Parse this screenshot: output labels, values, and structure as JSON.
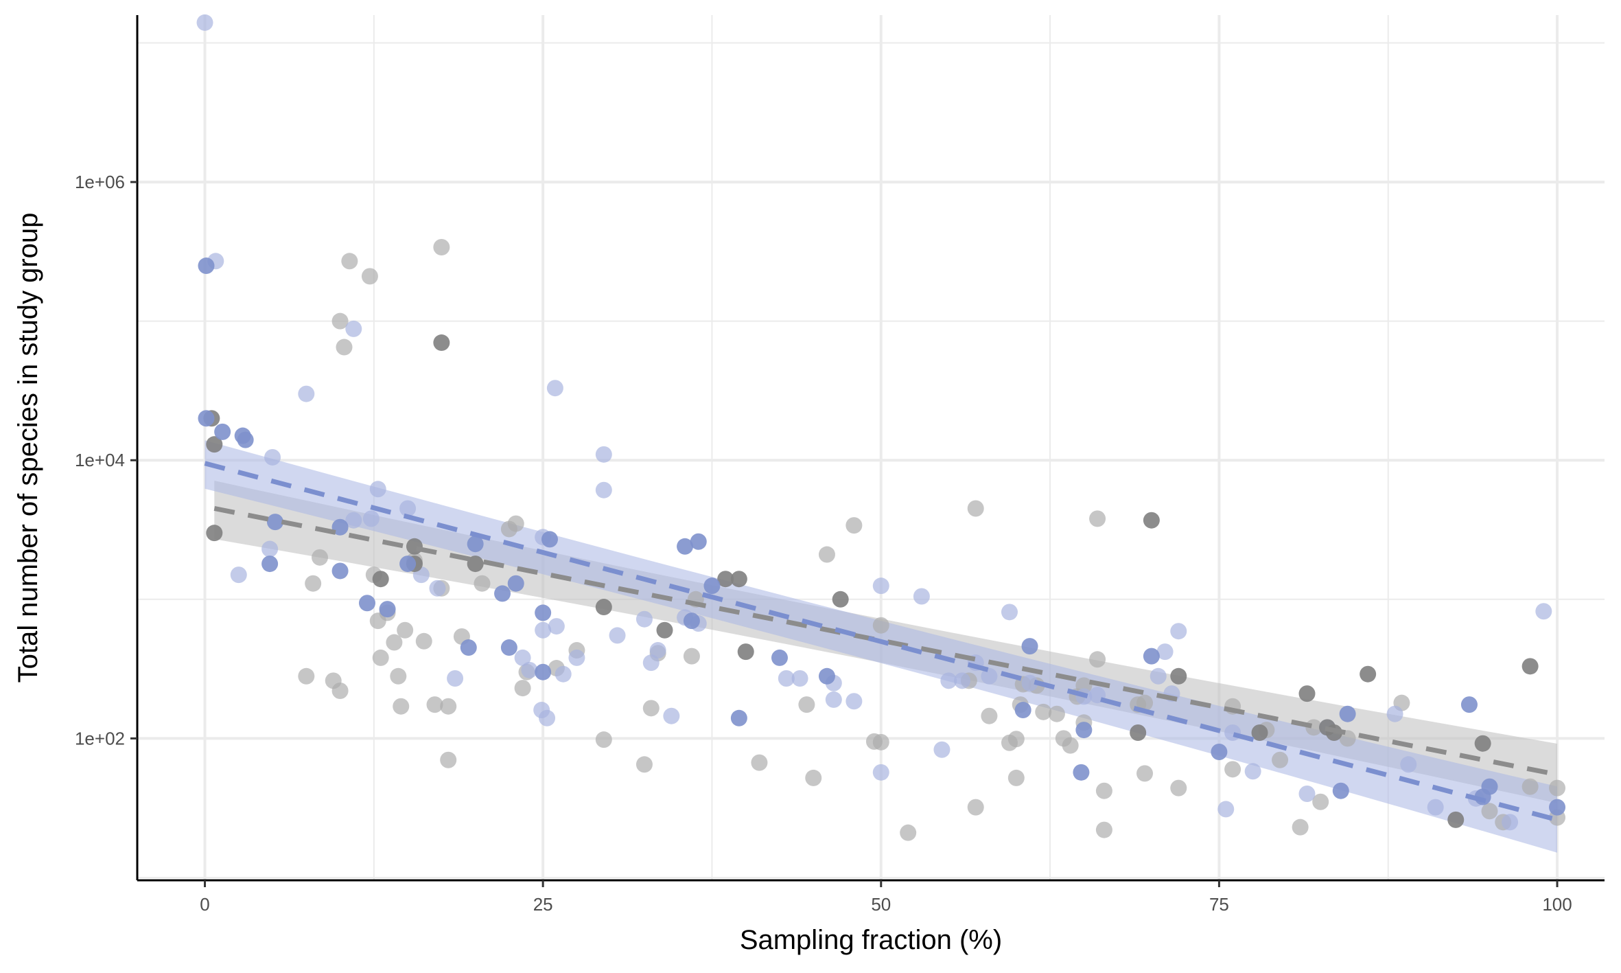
{
  "chart_data": {
    "type": "scatter",
    "title": "",
    "xlabel": "Sampling fraction (%)",
    "ylabel": "Total number of species in study group",
    "xlim": [
      -5,
      103.5
    ],
    "ylim_log10": [
      0.98,
      7.2
    ],
    "y_scale": "log10",
    "grid": true,
    "legend": "none",
    "x_ticks": [
      0,
      25,
      50,
      75,
      100
    ],
    "x_tick_labels": [
      "0",
      "25",
      "50",
      "75",
      "100"
    ],
    "y_ticks": [
      100,
      10000,
      1000000
    ],
    "y_tick_labels": [
      "1e+02",
      "1e+04",
      "1e+06"
    ],
    "colors": {
      "grey_light": "#ababab",
      "grey_dark": "#7f7f7f",
      "blue_light": "#a7b3de",
      "blue_dark": "#7e91cc",
      "grey_line": "#8c8c8c",
      "blue_line": "#7b8fcf",
      "grey_band": "#bdbdbd",
      "blue_band": "#a9b6e3",
      "grid": "#ebebeb"
    },
    "series": [
      {
        "color_key": "grey",
        "points_light": [
          [
            10,
            100000
          ],
          [
            10.3,
            65000
          ],
          [
            10.7,
            270000
          ],
          [
            12.2,
            210000
          ],
          [
            17.5,
            340000
          ],
          [
            9.5,
            260
          ],
          [
            7.5,
            280
          ],
          [
            10,
            220
          ],
          [
            8,
            1300
          ],
          [
            8.5,
            2000
          ],
          [
            12.5,
            1500
          ],
          [
            12.8,
            700
          ],
          [
            13,
            380
          ],
          [
            13.5,
            800
          ],
          [
            14,
            490
          ],
          [
            14.3,
            280
          ],
          [
            14.5,
            170
          ],
          [
            14.8,
            600
          ],
          [
            15.5,
            1900
          ],
          [
            16.2,
            500
          ],
          [
            17,
            175
          ],
          [
            17.5,
            1200
          ],
          [
            18,
            170
          ],
          [
            18,
            70
          ],
          [
            19,
            540
          ],
          [
            20.5,
            1300
          ],
          [
            22.5,
            3200
          ],
          [
            23,
            3500
          ],
          [
            23.5,
            230
          ],
          [
            23.8,
            300
          ],
          [
            26,
            320
          ],
          [
            27.5,
            430
          ],
          [
            29.5,
            98
          ],
          [
            32.5,
            65
          ],
          [
            33,
            165
          ],
          [
            33.5,
            410
          ],
          [
            36,
            390
          ],
          [
            36.3,
            1000
          ],
          [
            41,
            67
          ],
          [
            44.5,
            175
          ],
          [
            45,
            52
          ],
          [
            46,
            2100
          ],
          [
            48,
            3400
          ],
          [
            49.5,
            95
          ],
          [
            50,
            94
          ],
          [
            50,
            650
          ],
          [
            52,
            21
          ],
          [
            56.5,
            260
          ],
          [
            57,
            4500
          ],
          [
            57,
            32
          ],
          [
            58,
            145
          ],
          [
            59.5,
            93
          ],
          [
            60,
            52
          ],
          [
            60,
            99
          ],
          [
            60.3,
            175
          ],
          [
            60.5,
            245
          ],
          [
            61.5,
            240
          ],
          [
            62,
            155
          ],
          [
            63,
            150
          ],
          [
            63.5,
            100
          ],
          [
            64,
            89
          ],
          [
            64.5,
            200
          ],
          [
            65,
            240
          ],
          [
            65,
            130
          ],
          [
            66,
            3800
          ],
          [
            66,
            370
          ],
          [
            66.5,
            42
          ],
          [
            66.5,
            22
          ],
          [
            69,
            175
          ],
          [
            69.5,
            180
          ],
          [
            69.5,
            56
          ],
          [
            72,
            44
          ],
          [
            76,
            170
          ],
          [
            76,
            60
          ],
          [
            78.5,
            115
          ],
          [
            79.5,
            70
          ],
          [
            82,
            120
          ],
          [
            82.5,
            35
          ],
          [
            81,
            23
          ],
          [
            84.5,
            100
          ],
          [
            88.5,
            180
          ],
          [
            95,
            30
          ],
          [
            96,
            25
          ],
          [
            98,
            45
          ],
          [
            100,
            44
          ],
          [
            100,
            27
          ]
        ],
        "points_dark": [
          [
            0.5,
            20000
          ],
          [
            0.7,
            13000
          ],
          [
            0.7,
            3000
          ],
          [
            13,
            1400
          ],
          [
            15.5,
            2400
          ],
          [
            15.5,
            1800
          ],
          [
            17.5,
            70000
          ],
          [
            20,
            1800
          ],
          [
            29.5,
            880
          ],
          [
            34,
            600
          ],
          [
            38.5,
            1400
          ],
          [
            39.5,
            1400
          ],
          [
            40,
            420
          ],
          [
            47,
            1000
          ],
          [
            69,
            110
          ],
          [
            70,
            3700
          ],
          [
            72,
            280
          ],
          [
            78,
            110
          ],
          [
            81.5,
            210
          ],
          [
            83,
            120
          ],
          [
            83.5,
            110
          ],
          [
            86,
            290
          ],
          [
            92.5,
            26
          ],
          [
            94.5,
            92
          ],
          [
            98,
            330
          ]
        ],
        "fit": {
          "x": [
            0.7,
            100
          ],
          "y": [
            4500,
            55
          ],
          "ci_low": [
            2900,
            38
          ],
          "ci_high": [
            6700,
            82
          ]
        }
      },
      {
        "color_key": "blue",
        "points_light": [
          [
            0,
            14000000
          ],
          [
            0.8,
            270000
          ],
          [
            7.5,
            30000
          ],
          [
            11,
            88000
          ],
          [
            25.9,
            33000
          ],
          [
            29.5,
            11000
          ],
          [
            29.5,
            6100
          ],
          [
            5,
            10500
          ],
          [
            12.8,
            6200
          ],
          [
            4.8,
            2300
          ],
          [
            2.5,
            1500
          ],
          [
            11,
            3700
          ],
          [
            12.3,
            3800
          ],
          [
            15,
            4500
          ],
          [
            16,
            1500
          ],
          [
            17.2,
            1200
          ],
          [
            18.5,
            270
          ],
          [
            23.5,
            380
          ],
          [
            24,
            310
          ],
          [
            25,
            600
          ],
          [
            26,
            640
          ],
          [
            26.5,
            290
          ],
          [
            27.5,
            380
          ],
          [
            25,
            2800
          ],
          [
            24.9,
            160
          ],
          [
            25.3,
            140
          ],
          [
            30.5,
            550
          ],
          [
            32.5,
            720
          ],
          [
            33,
            350
          ],
          [
            33.5,
            430
          ],
          [
            34.5,
            145
          ],
          [
            35.5,
            740
          ],
          [
            36.5,
            670
          ],
          [
            43,
            270
          ],
          [
            44,
            270
          ],
          [
            46.5,
            250
          ],
          [
            46.5,
            190
          ],
          [
            48,
            185
          ],
          [
            50,
            1250
          ],
          [
            50,
            57
          ],
          [
            53,
            1050
          ],
          [
            54.5,
            83
          ],
          [
            55,
            260
          ],
          [
            56,
            260
          ],
          [
            57,
            350
          ],
          [
            58,
            280
          ],
          [
            59.5,
            810
          ],
          [
            61,
            250
          ],
          [
            65,
            200
          ],
          [
            66,
            205
          ],
          [
            70.5,
            280
          ],
          [
            71,
            420
          ],
          [
            71.5,
            210
          ],
          [
            72,
            590
          ],
          [
            75.5,
            31
          ],
          [
            76,
            110
          ],
          [
            77.5,
            58
          ],
          [
            81.5,
            40
          ],
          [
            83,
            120
          ],
          [
            88,
            150
          ],
          [
            89,
            65
          ],
          [
            91,
            32
          ],
          [
            94,
            37
          ],
          [
            96.5,
            25
          ],
          [
            99,
            820
          ]
        ],
        "points_dark": [
          [
            0.1,
            250000
          ],
          [
            0.1,
            20000
          ],
          [
            1.3,
            16000
          ],
          [
            2.8,
            15000
          ],
          [
            3,
            14000
          ],
          [
            4.8,
            1800
          ],
          [
            5.2,
            3600
          ],
          [
            10,
            3300
          ],
          [
            10,
            1600
          ],
          [
            12,
            940
          ],
          [
            13.5,
            850
          ],
          [
            15,
            1800
          ],
          [
            19.5,
            450
          ],
          [
            20,
            2500
          ],
          [
            22,
            1100
          ],
          [
            22.5,
            450
          ],
          [
            23,
            1300
          ],
          [
            25,
            800
          ],
          [
            25,
            300
          ],
          [
            25.5,
            2700
          ],
          [
            35.5,
            2400
          ],
          [
            36,
            700
          ],
          [
            36.5,
            2600
          ],
          [
            37.5,
            1250
          ],
          [
            39.5,
            140
          ],
          [
            42.5,
            380
          ],
          [
            46,
            280
          ],
          [
            60.5,
            160
          ],
          [
            61,
            460
          ],
          [
            64.8,
            57
          ],
          [
            65,
            115
          ],
          [
            70,
            390
          ],
          [
            75,
            80
          ],
          [
            84,
            42
          ],
          [
            93.5,
            175
          ],
          [
            95,
            45
          ],
          [
            94.5,
            38
          ],
          [
            100,
            32
          ],
          [
            84.5,
            150
          ]
        ],
        "fit": {
          "x": [
            0,
            100
          ],
          "y": [
            9500,
            26
          ],
          "ci_low": [
            6600,
            17
          ],
          "ci_high": [
            13200,
            40
          ]
        }
      }
    ]
  }
}
